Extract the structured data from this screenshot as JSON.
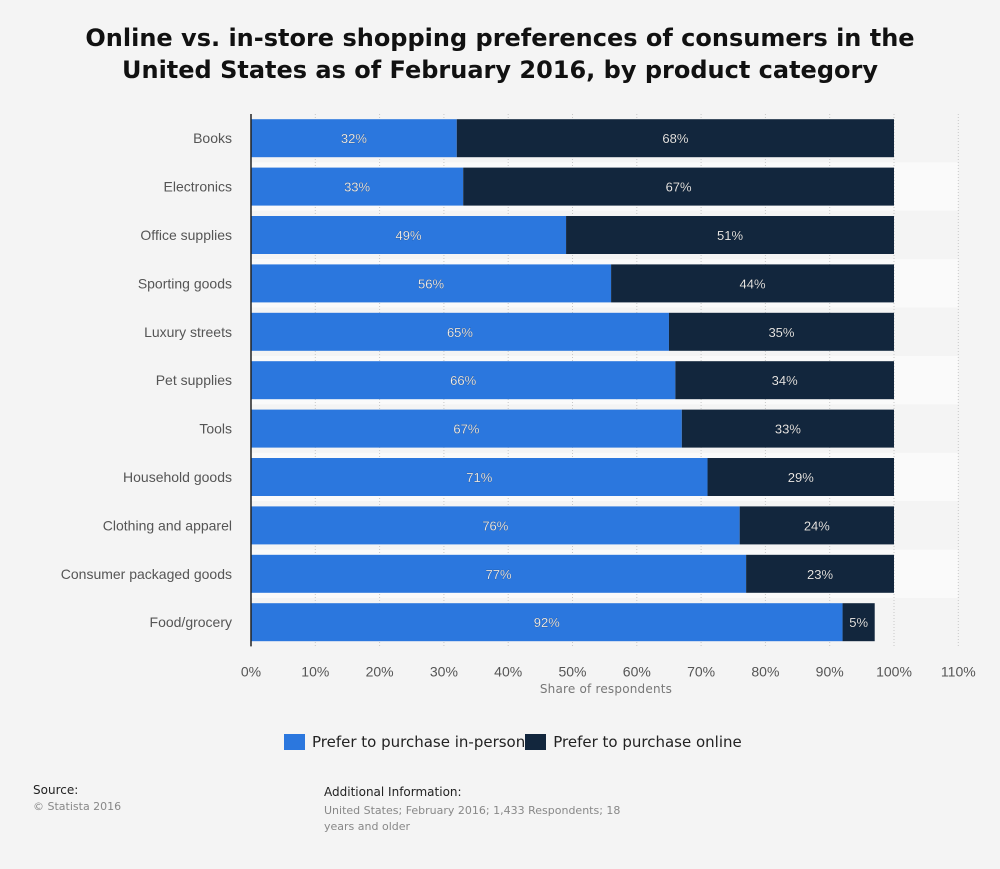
{
  "title": "Online vs. in-store shopping preferences of consumers in the United States as of February 2016, by product category",
  "chart_data": {
    "type": "bar",
    "orientation": "horizontal",
    "stacked": true,
    "categories": [
      "Books",
      "Electronics",
      "Office supplies",
      "Sporting goods",
      "Luxury streets",
      "Pet supplies",
      "Tools",
      "Household goods",
      "Clothing and apparel",
      "Consumer packaged goods",
      "Food/grocery"
    ],
    "series": [
      {
        "name": "Prefer to purchase in-person",
        "color": "#2b77de",
        "values": [
          32,
          33,
          49,
          56,
          65,
          66,
          67,
          71,
          76,
          77,
          92
        ]
      },
      {
        "name": "Prefer to purchase online",
        "color": "#12263d",
        "values": [
          68,
          67,
          51,
          44,
          35,
          34,
          33,
          29,
          24,
          23,
          5
        ]
      }
    ],
    "xlabel": "Share of respondents",
    "ylabel": "",
    "xlim": [
      0,
      110
    ],
    "ticks": [
      "0%",
      "10%",
      "20%",
      "30%",
      "40%",
      "50%",
      "60%",
      "70%",
      "80%",
      "90%",
      "100%",
      "110%"
    ],
    "tick_values": [
      0,
      10,
      20,
      30,
      40,
      50,
      60,
      70,
      80,
      90,
      100,
      110
    ],
    "value_suffix": "%",
    "grid": true,
    "legend_position": "bottom"
  },
  "legend": {
    "items": [
      {
        "label": "Prefer to purchase in-person",
        "color": "#2b77de"
      },
      {
        "label": "Prefer to purchase online",
        "color": "#12263d"
      }
    ]
  },
  "footer": {
    "source_label": "Source:",
    "source_text": "© Statista 2016",
    "additional_label": "Additional Information:",
    "additional_text": "United States; February 2016; 1,433 Respondents; 18 years and older"
  }
}
